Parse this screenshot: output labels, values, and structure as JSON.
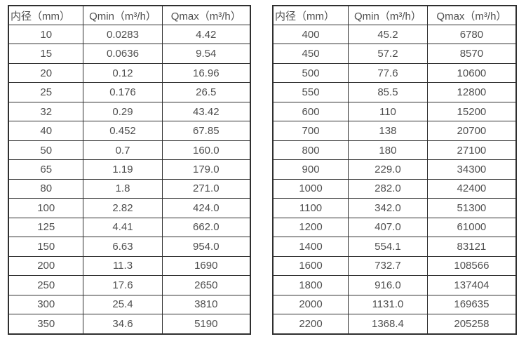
{
  "colors": {
    "border": "#2f2f2f",
    "text": "#4f4f4f",
    "background": "#ffffff"
  },
  "chart_data": [
    {
      "type": "table",
      "title": "",
      "columns": [
        "内径（mm）",
        "Qmin（m³/h）",
        "Qmax（m³/h）"
      ],
      "rows": [
        [
          "10",
          "0.0283",
          "4.42"
        ],
        [
          "15",
          "0.0636",
          "9.54"
        ],
        [
          "20",
          "0.12",
          "16.96"
        ],
        [
          "25",
          "0.176",
          "26.5"
        ],
        [
          "32",
          "0.29",
          "43.42"
        ],
        [
          "40",
          "0.452",
          "67.85"
        ],
        [
          "50",
          "0.7",
          "160.0"
        ],
        [
          "65",
          "1.19",
          "179.0"
        ],
        [
          "80",
          "1.8",
          "271.0"
        ],
        [
          "100",
          "2.82",
          "424.0"
        ],
        [
          "125",
          "4.41",
          "662.0"
        ],
        [
          "150",
          "6.63",
          "954.0"
        ],
        [
          "200",
          "11.3",
          "1690"
        ],
        [
          "250",
          "17.6",
          "2650"
        ],
        [
          "300",
          "25.4",
          "3810"
        ],
        [
          "350",
          "34.6",
          "5190"
        ]
      ]
    },
    {
      "type": "table",
      "title": "",
      "columns": [
        "内径（mm）",
        "Qmin（m³/h）",
        "Qmax（m³/h）"
      ],
      "rows": [
        [
          "400",
          "45.2",
          "6780"
        ],
        [
          "450",
          "57.2",
          "8570"
        ],
        [
          "500",
          "77.6",
          "10600"
        ],
        [
          "550",
          "85.5",
          "12800"
        ],
        [
          "600",
          "110",
          "15200"
        ],
        [
          "700",
          "138",
          "20700"
        ],
        [
          "800",
          "180",
          "27100"
        ],
        [
          "900",
          "229.0",
          "34300"
        ],
        [
          "1000",
          "282.0",
          "42400"
        ],
        [
          "1100",
          "342.0",
          "51300"
        ],
        [
          "1200",
          "407.0",
          "61000"
        ],
        [
          "1400",
          "554.1",
          "83121"
        ],
        [
          "1600",
          "732.7",
          "108566"
        ],
        [
          "1800",
          "916.0",
          "137404"
        ],
        [
          "2000",
          "1131.0",
          "169635"
        ],
        [
          "2200",
          "1368.4",
          "205258"
        ]
      ]
    }
  ]
}
